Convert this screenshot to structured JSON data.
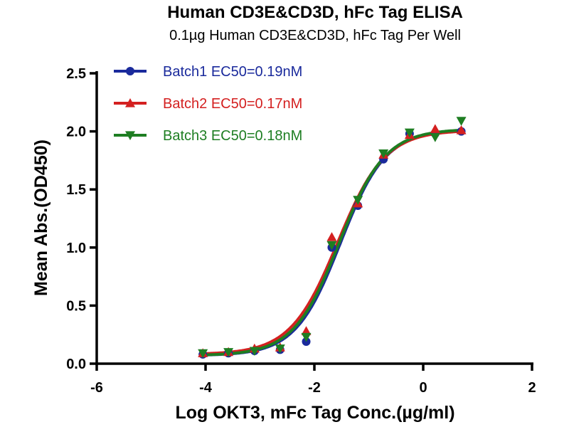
{
  "chart_data": {
    "type": "line",
    "title": "Human CD3E&CD3D, hFc Tag ELISA",
    "subtitle": "0.1µg Human CD3E&CD3D, hFc Tag  Per Well",
    "xlabel": "Log OKT3, mFc Tag Conc.(µg/ml)",
    "ylabel": "Mean Abs.(OD450)",
    "xlim": [
      -6,
      2
    ],
    "ylim": [
      0,
      2.5
    ],
    "xticks": [
      -6,
      -4,
      -2,
      0,
      2
    ],
    "xtick_labels": [
      "-6",
      "-4",
      "-2",
      "0",
      "2"
    ],
    "yticks": [
      0,
      0.5,
      1.0,
      1.5,
      2.0,
      2.5
    ],
    "ytick_labels": [
      "0.0",
      "0.5",
      "1.0",
      "1.5",
      "2.0",
      "2.5"
    ],
    "grid": false,
    "legend_position": "top-left",
    "x": [
      -4.05,
      -3.58,
      -3.1,
      -2.63,
      -2.15,
      -1.68,
      -1.2,
      -0.73,
      -0.25,
      0.22,
      0.7
    ],
    "series": [
      {
        "name": "Batch1 EC50=0.19nM",
        "color": "#1a2a9c",
        "marker": "circle",
        "values": [
          0.08,
          0.09,
          0.11,
          0.12,
          0.19,
          1.0,
          1.36,
          1.76,
          1.98,
          1.98,
          2.0
        ],
        "fit": {
          "bottom": 0.07,
          "top": 2.01,
          "logEC50": -1.52,
          "hill": 1.05
        }
      },
      {
        "name": "Batch2 EC50=0.17nM",
        "color": "#d42020",
        "marker": "triangle-up",
        "values": [
          0.09,
          0.1,
          0.13,
          0.14,
          0.28,
          1.09,
          1.38,
          1.8,
          1.97,
          2.02,
          2.01
        ],
        "fit": {
          "bottom": 0.08,
          "top": 2.01,
          "logEC50": -1.57,
          "hill": 1.0
        }
      },
      {
        "name": "Batch3 EC50=0.18nM",
        "color": "#1e7e22",
        "marker": "triangle-down",
        "values": [
          0.09,
          0.1,
          0.11,
          0.13,
          0.23,
          1.02,
          1.41,
          1.81,
          1.99,
          1.95,
          2.09
        ],
        "fit": {
          "bottom": 0.07,
          "top": 2.02,
          "logEC50": -1.54,
          "hill": 1.03
        }
      }
    ]
  }
}
